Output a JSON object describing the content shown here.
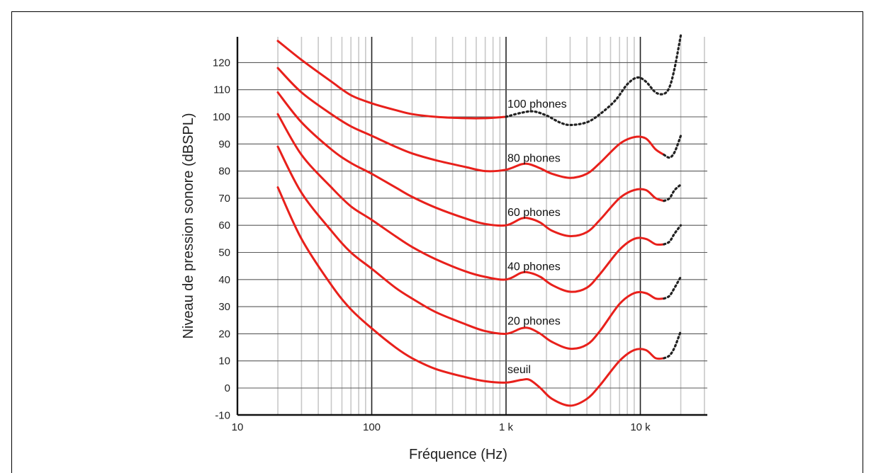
{
  "chart_data": {
    "type": "line",
    "title": "",
    "xlabel": "Fréquence (Hz)",
    "ylabel": "Niveau de pression sonore (dBSPL)",
    "xscale": "log",
    "xlim": [
      10,
      30000
    ],
    "ylim": [
      -10,
      130
    ],
    "x_ticks": [
      {
        "value": 10,
        "label": "10"
      },
      {
        "value": 100,
        "label": "100"
      },
      {
        "value": 1000,
        "label": "1 k"
      },
      {
        "value": 10000,
        "label": "10 k"
      }
    ],
    "y_ticks": [
      -10,
      0,
      10,
      20,
      30,
      40,
      50,
      60,
      70,
      80,
      90,
      100,
      110,
      120
    ],
    "grid": true,
    "solid_color": "#e8201b",
    "dotted_color": "#222222",
    "series": [
      {
        "name": "seuil",
        "solid": [
          [
            20,
            74
          ],
          [
            30,
            55
          ],
          [
            50,
            38
          ],
          [
            70,
            29
          ],
          [
            100,
            22
          ],
          [
            150,
            15
          ],
          [
            200,
            11
          ],
          [
            300,
            7
          ],
          [
            500,
            4
          ],
          [
            700,
            2.5
          ],
          [
            1000,
            2
          ],
          [
            1300,
            3
          ],
          [
            1500,
            3
          ],
          [
            1800,
            0
          ],
          [
            2200,
            -4
          ],
          [
            3000,
            -6.5
          ],
          [
            4000,
            -4
          ],
          [
            5000,
            1
          ],
          [
            7000,
            10
          ],
          [
            9000,
            14
          ],
          [
            11000,
            14
          ],
          [
            13000,
            11
          ],
          [
            15000,
            11
          ]
        ],
        "dotted": [
          [
            15000,
            11
          ],
          [
            16500,
            12
          ],
          [
            18000,
            15
          ],
          [
            20000,
            21
          ]
        ]
      },
      {
        "name": "20 phones",
        "solid": [
          [
            20,
            89
          ],
          [
            30,
            72
          ],
          [
            50,
            58
          ],
          [
            70,
            50
          ],
          [
            100,
            44
          ],
          [
            150,
            37
          ],
          [
            200,
            33
          ],
          [
            300,
            28
          ],
          [
            500,
            23.5
          ],
          [
            700,
            21
          ],
          [
            1000,
            20
          ],
          [
            1300,
            22
          ],
          [
            1500,
            22
          ],
          [
            1800,
            20
          ],
          [
            2200,
            17
          ],
          [
            3000,
            14.5
          ],
          [
            4000,
            16
          ],
          [
            5000,
            21
          ],
          [
            7000,
            31
          ],
          [
            9000,
            35
          ],
          [
            11000,
            35
          ],
          [
            13000,
            33
          ],
          [
            15000,
            33
          ]
        ],
        "dotted": [
          [
            15000,
            33
          ],
          [
            16500,
            34
          ],
          [
            18000,
            37
          ],
          [
            20000,
            41
          ]
        ]
      },
      {
        "name": "40 phones",
        "solid": [
          [
            20,
            101
          ],
          [
            30,
            86
          ],
          [
            50,
            74
          ],
          [
            70,
            67
          ],
          [
            100,
            62
          ],
          [
            150,
            56
          ],
          [
            200,
            52
          ],
          [
            300,
            47.5
          ],
          [
            500,
            43
          ],
          [
            700,
            41
          ],
          [
            1000,
            40
          ],
          [
            1300,
            42.5
          ],
          [
            1500,
            42.5
          ],
          [
            1800,
            41
          ],
          [
            2200,
            38
          ],
          [
            3000,
            35.5
          ],
          [
            4000,
            37
          ],
          [
            5000,
            42
          ],
          [
            7000,
            51
          ],
          [
            9000,
            55
          ],
          [
            11000,
            55
          ],
          [
            13000,
            53
          ],
          [
            15000,
            53
          ]
        ],
        "dotted": [
          [
            15000,
            53
          ],
          [
            16500,
            54
          ],
          [
            18000,
            57
          ],
          [
            20000,
            60
          ]
        ]
      },
      {
        "name": "60 phones",
        "solid": [
          [
            20,
            109
          ],
          [
            30,
            98
          ],
          [
            50,
            88
          ],
          [
            70,
            83
          ],
          [
            100,
            79
          ],
          [
            150,
            74
          ],
          [
            200,
            70.5
          ],
          [
            300,
            66.5
          ],
          [
            500,
            62.5
          ],
          [
            700,
            60.5
          ],
          [
            1000,
            60
          ],
          [
            1300,
            62.5
          ],
          [
            1500,
            62.5
          ],
          [
            1800,
            61
          ],
          [
            2200,
            58
          ],
          [
            3000,
            56
          ],
          [
            4000,
            57.5
          ],
          [
            5000,
            62
          ],
          [
            7000,
            70
          ],
          [
            9000,
            73
          ],
          [
            11000,
            73
          ],
          [
            13000,
            70
          ],
          [
            15000,
            69
          ]
        ],
        "dotted": [
          [
            15000,
            69
          ],
          [
            16500,
            70
          ],
          [
            18000,
            73
          ],
          [
            20000,
            75
          ]
        ]
      },
      {
        "name": "80 phones",
        "solid": [
          [
            20,
            118
          ],
          [
            30,
            109
          ],
          [
            50,
            101
          ],
          [
            70,
            96.5
          ],
          [
            100,
            93
          ],
          [
            150,
            89
          ],
          [
            200,
            86.5
          ],
          [
            300,
            84
          ],
          [
            500,
            81.5
          ],
          [
            700,
            80
          ],
          [
            1000,
            80.5
          ],
          [
            1300,
            82.5
          ],
          [
            1500,
            82.5
          ],
          [
            1800,
            81
          ],
          [
            2200,
            79
          ],
          [
            3000,
            77.5
          ],
          [
            4000,
            79
          ],
          [
            5000,
            83
          ],
          [
            7000,
            90
          ],
          [
            9000,
            92.5
          ],
          [
            11000,
            92
          ],
          [
            13000,
            88
          ],
          [
            15000,
            86
          ]
        ],
        "dotted": [
          [
            15000,
            86
          ],
          [
            16500,
            85
          ],
          [
            18000,
            87
          ],
          [
            20000,
            93
          ]
        ]
      },
      {
        "name": "100 phones",
        "solid": [
          [
            20,
            128
          ],
          [
            30,
            121
          ],
          [
            50,
            113
          ],
          [
            70,
            108
          ],
          [
            100,
            105
          ],
          [
            150,
            102.5
          ],
          [
            200,
            101
          ],
          [
            300,
            100
          ],
          [
            500,
            99.5
          ],
          [
            700,
            99.5
          ],
          [
            1000,
            100
          ]
        ],
        "dotted": [
          [
            1000,
            100
          ],
          [
            1300,
            101.5
          ],
          [
            1600,
            102
          ],
          [
            2000,
            100.5
          ],
          [
            2500,
            98
          ],
          [
            3000,
            97
          ],
          [
            4000,
            98
          ],
          [
            5000,
            101
          ],
          [
            6500,
            106
          ],
          [
            8000,
            112
          ],
          [
            9500,
            114.5
          ],
          [
            11000,
            113
          ],
          [
            13000,
            109
          ],
          [
            15000,
            108.5
          ],
          [
            16500,
            111
          ],
          [
            18000,
            118
          ],
          [
            20000,
            130
          ]
        ]
      }
    ],
    "labels": [
      {
        "text": "100 phones",
        "x": 1000,
        "y": 105
      },
      {
        "text": "80 phones",
        "x": 1000,
        "y": 85
      },
      {
        "text": "60 phones",
        "x": 1000,
        "y": 65
      },
      {
        "text": "40 phones",
        "x": 1000,
        "y": 45
      },
      {
        "text": "20 phones",
        "x": 1000,
        "y": 25
      },
      {
        "text": "seuil",
        "x": 1000,
        "y": 7
      }
    ]
  }
}
